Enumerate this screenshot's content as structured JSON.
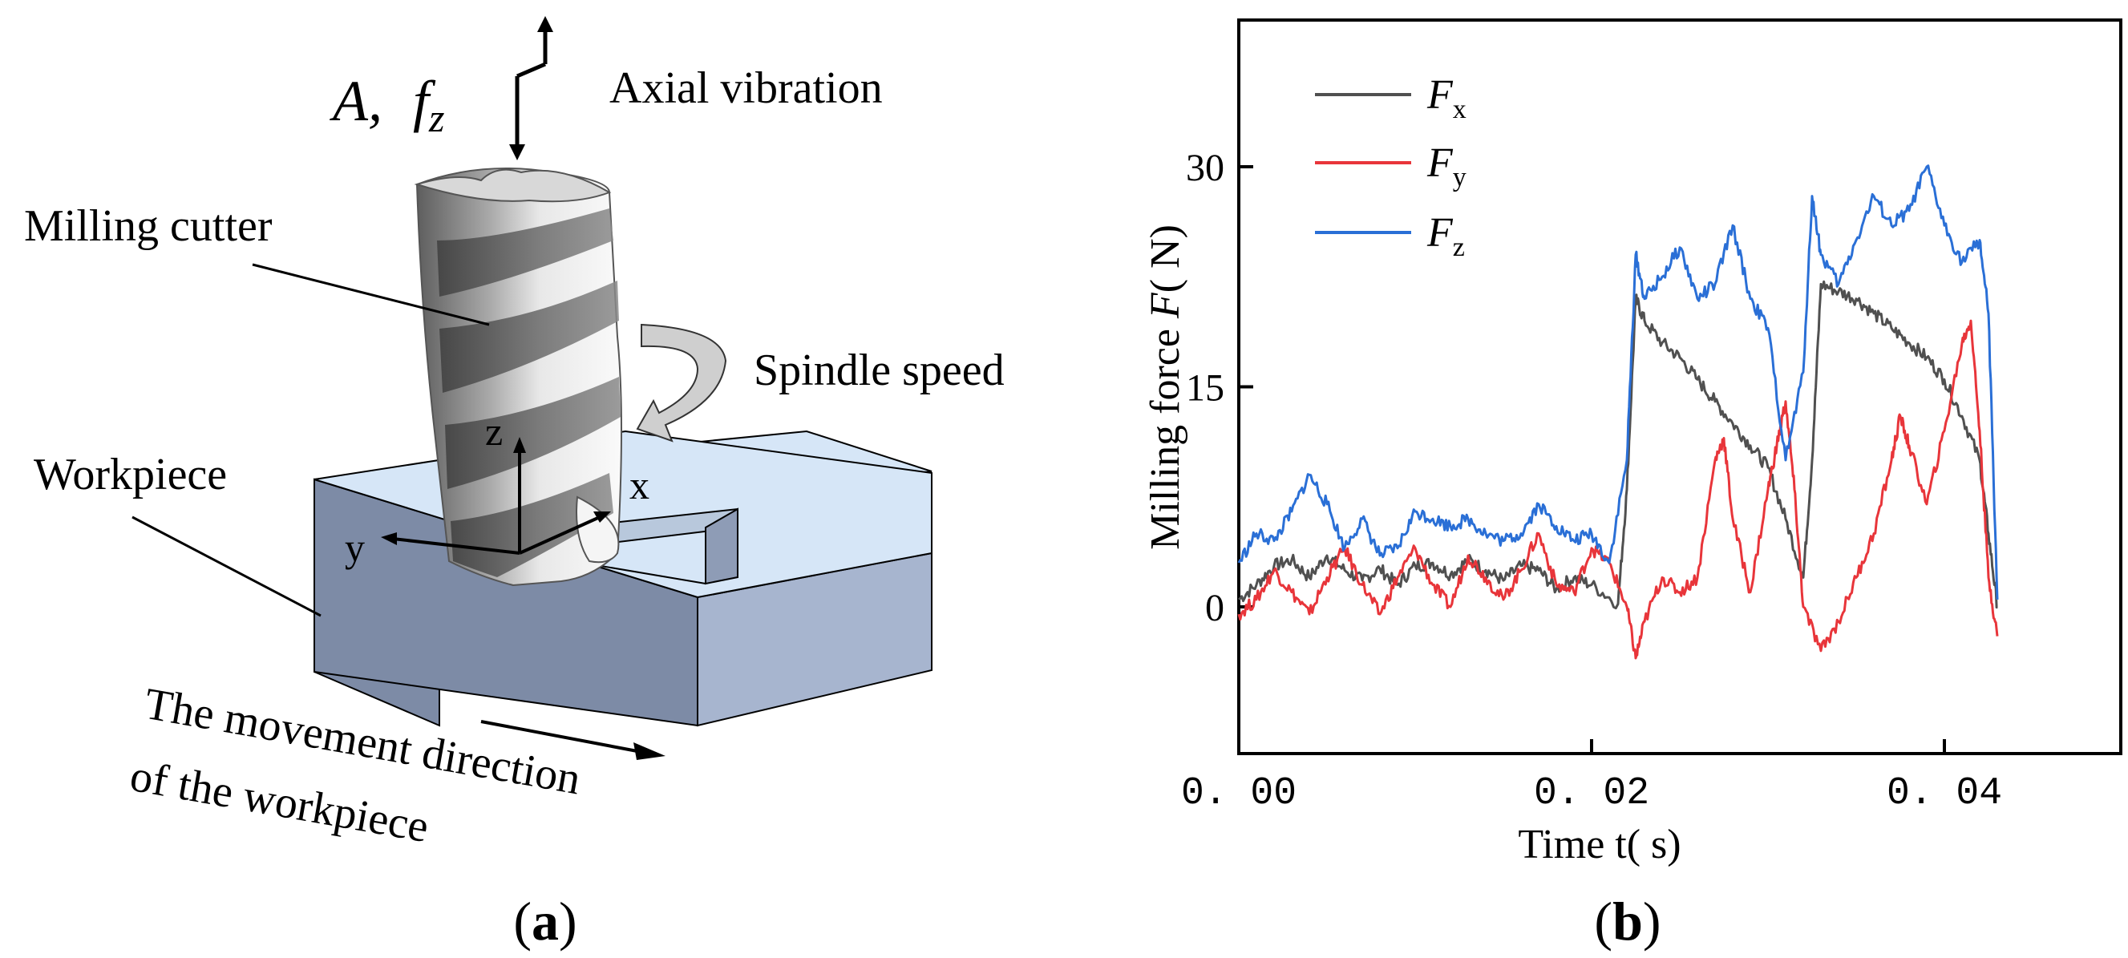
{
  "diagram": {
    "vibration_amplitude": "A,",
    "vibration_freq_symbol": "f",
    "vibration_freq_sub": "z",
    "axial_vibration": "Axial vibration",
    "milling_cutter": "Milling cutter",
    "spindle_speed": "Spindle speed",
    "workpiece": "Workpiece",
    "axis_x": "x",
    "axis_y": "y",
    "axis_z": "z",
    "movement_line1": "The movement direction",
    "movement_line2": "of the workpiece",
    "caption_a_open": "(",
    "caption_a": "a",
    "caption_a_close": ")",
    "colors": {
      "workpiece_top": "#d6e6f7",
      "workpiece_front": "#7d8ba6",
      "workpiece_side": "#a7b5cf",
      "cutter_dark": "#6f6f6f",
      "cutter_light": "#f2f2f2"
    }
  },
  "chart_data": {
    "type": "line",
    "ylabel_text": "Milling force ",
    "ylabel_var": "F",
    "ylabel_unit": "( N)",
    "xlabel": "Time t( s)",
    "xlim": [
      0.0,
      0.05
    ],
    "ylim": [
      -10,
      40
    ],
    "x_ticks": [
      0.0,
      0.02,
      0.04
    ],
    "x_tick_labels": [
      "0. 00",
      "0. 02",
      "0. 04"
    ],
    "y_ticks": [
      0,
      15,
      30
    ],
    "y_tick_labels": [
      "0",
      "15",
      "30"
    ],
    "legend_position": "top-left",
    "caption_open": "(",
    "caption": "b",
    "caption_close": ")",
    "series": [
      {
        "name_main": "F",
        "name_sub": "x",
        "color": "#505050",
        "points": [
          [
            0.0,
            0.5
          ],
          [
            0.001,
            1.5
          ],
          [
            0.002,
            2.8
          ],
          [
            0.003,
            3.2
          ],
          [
            0.004,
            2.0
          ],
          [
            0.005,
            3.5
          ],
          [
            0.006,
            2.5
          ],
          [
            0.007,
            1.8
          ],
          [
            0.008,
            2.6
          ],
          [
            0.009,
            1.5
          ],
          [
            0.01,
            2.8
          ],
          [
            0.011,
            3.0
          ],
          [
            0.012,
            2.2
          ],
          [
            0.013,
            3.2
          ],
          [
            0.014,
            2.5
          ],
          [
            0.015,
            1.8
          ],
          [
            0.016,
            2.8
          ],
          [
            0.017,
            2.5
          ],
          [
            0.018,
            1.2
          ],
          [
            0.019,
            2.0
          ],
          [
            0.02,
            1.5
          ],
          [
            0.0215,
            0.2
          ],
          [
            0.022,
            8.0
          ],
          [
            0.0225,
            21.0
          ],
          [
            0.023,
            19.5
          ],
          [
            0.024,
            18.0
          ],
          [
            0.025,
            17.0
          ],
          [
            0.026,
            15.5
          ],
          [
            0.027,
            14.0
          ],
          [
            0.028,
            12.5
          ],
          [
            0.029,
            11.0
          ],
          [
            0.03,
            9.5
          ],
          [
            0.031,
            6.0
          ],
          [
            0.032,
            2.0
          ],
          [
            0.0325,
            10.0
          ],
          [
            0.033,
            22.0
          ],
          [
            0.034,
            21.5
          ],
          [
            0.035,
            21.0
          ],
          [
            0.036,
            20.0
          ],
          [
            0.037,
            19.0
          ],
          [
            0.038,
            18.0
          ],
          [
            0.039,
            17.0
          ],
          [
            0.04,
            15.5
          ],
          [
            0.041,
            13.0
          ],
          [
            0.042,
            10.0
          ],
          [
            0.0425,
            5.0
          ],
          [
            0.043,
            0.0
          ]
        ]
      },
      {
        "name_main": "F",
        "name_sub": "y",
        "color": "#e8353a",
        "points": [
          [
            0.0,
            -0.5
          ],
          [
            0.001,
            0.5
          ],
          [
            0.002,
            2.5
          ],
          [
            0.003,
            1.0
          ],
          [
            0.004,
            -0.5
          ],
          [
            0.005,
            2.0
          ],
          [
            0.006,
            4.0
          ],
          [
            0.007,
            1.5
          ],
          [
            0.008,
            -0.5
          ],
          [
            0.009,
            2.0
          ],
          [
            0.01,
            4.0
          ],
          [
            0.011,
            1.5
          ],
          [
            0.012,
            0.0
          ],
          [
            0.013,
            3.5
          ],
          [
            0.014,
            2.0
          ],
          [
            0.015,
            0.5
          ],
          [
            0.016,
            2.5
          ],
          [
            0.017,
            5.0
          ],
          [
            0.018,
            1.5
          ],
          [
            0.019,
            1.0
          ],
          [
            0.02,
            4.0
          ],
          [
            0.021,
            3.0
          ],
          [
            0.022,
            0.0
          ],
          [
            0.0225,
            -3.5
          ],
          [
            0.023,
            -1.0
          ],
          [
            0.024,
            2.0
          ],
          [
            0.025,
            1.0
          ],
          [
            0.026,
            2.0
          ],
          [
            0.027,
            10.0
          ],
          [
            0.0275,
            11.5
          ],
          [
            0.028,
            6.0
          ],
          [
            0.029,
            1.0
          ],
          [
            0.03,
            8.0
          ],
          [
            0.0305,
            11.0
          ],
          [
            0.031,
            14.0
          ],
          [
            0.0315,
            8.0
          ],
          [
            0.032,
            0.0
          ],
          [
            0.033,
            -3.0
          ],
          [
            0.034,
            -1.0
          ],
          [
            0.035,
            2.0
          ],
          [
            0.036,
            5.0
          ],
          [
            0.037,
            10.0
          ],
          [
            0.0375,
            13.0
          ],
          [
            0.038,
            11.0
          ],
          [
            0.039,
            7.0
          ],
          [
            0.04,
            12.0
          ],
          [
            0.041,
            18.0
          ],
          [
            0.0415,
            19.5
          ],
          [
            0.042,
            12.0
          ],
          [
            0.0425,
            2.0
          ],
          [
            0.043,
            -2.0
          ]
        ]
      },
      {
        "name_main": "F",
        "name_sub": "z",
        "color": "#2a6fd6",
        "points": [
          [
            0.0,
            3.0
          ],
          [
            0.001,
            5.0
          ],
          [
            0.002,
            4.5
          ],
          [
            0.003,
            6.5
          ],
          [
            0.004,
            9.0
          ],
          [
            0.005,
            7.0
          ],
          [
            0.006,
            4.0
          ],
          [
            0.007,
            6.0
          ],
          [
            0.008,
            3.5
          ],
          [
            0.009,
            4.0
          ],
          [
            0.01,
            6.5
          ],
          [
            0.011,
            6.0
          ],
          [
            0.012,
            5.5
          ],
          [
            0.013,
            6.0
          ],
          [
            0.014,
            5.0
          ],
          [
            0.015,
            4.5
          ],
          [
            0.016,
            5.0
          ],
          [
            0.017,
            7.0
          ],
          [
            0.018,
            5.5
          ],
          [
            0.019,
            4.5
          ],
          [
            0.02,
            5.0
          ],
          [
            0.021,
            3.0
          ],
          [
            0.022,
            10.0
          ],
          [
            0.0225,
            24.0
          ],
          [
            0.023,
            21.0
          ],
          [
            0.024,
            22.5
          ],
          [
            0.025,
            24.5
          ],
          [
            0.026,
            21.0
          ],
          [
            0.027,
            22.0
          ],
          [
            0.028,
            26.0
          ],
          [
            0.029,
            21.0
          ],
          [
            0.03,
            19.0
          ],
          [
            0.031,
            10.0
          ],
          [
            0.032,
            16.0
          ],
          [
            0.0325,
            28.0
          ],
          [
            0.033,
            24.0
          ],
          [
            0.034,
            22.0
          ],
          [
            0.035,
            25.0
          ],
          [
            0.036,
            28.0
          ],
          [
            0.037,
            26.0
          ],
          [
            0.038,
            27.0
          ],
          [
            0.039,
            30.0
          ],
          [
            0.04,
            26.0
          ],
          [
            0.041,
            23.5
          ],
          [
            0.042,
            25.0
          ],
          [
            0.0425,
            20.0
          ],
          [
            0.043,
            0.5
          ]
        ]
      }
    ]
  }
}
